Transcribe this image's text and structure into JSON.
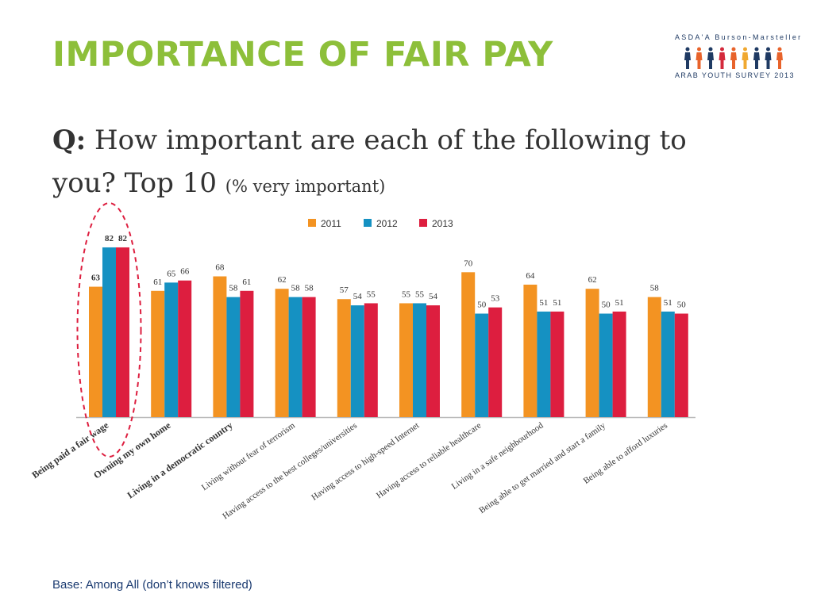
{
  "slide": {
    "title": "IMPORTANCE OF FAIR PAY",
    "question_prefix": "Q:",
    "question_text": "How important are each of the following to you? Top 10",
    "question_note": "(% very important)",
    "base_note": "Base: Among All (don’t knows filtered)"
  },
  "logo": {
    "top_text": "ASDA'A Burson-Marsteller",
    "bottom_text": "ARAB YOUTH SURVEY 2013",
    "figure_colors": [
      "#1f3a63",
      "#e8632b",
      "#1f3a63",
      "#d42a3c",
      "#e8632b",
      "#f0a830",
      "#1f3a63",
      "#1f3a63",
      "#e8632b"
    ]
  },
  "colors": {
    "title": "#8dbf3a",
    "series": [
      "#f39322",
      "#1591c2",
      "#dd1e3f"
    ],
    "highlight": "#dd1e3f"
  },
  "chart_data": {
    "type": "bar",
    "categories": [
      "Being paid a fair wage",
      "Owning my own home",
      "Living in a democratic country",
      "Living without fear of terrorism",
      "Having access to the best colleges/universities",
      "Having access to high-speed Internet",
      "Having access to reliable healthcare",
      "Living in a safe neighbourhood",
      "Being able to get married and start a family",
      "Being able to afford luxuries"
    ],
    "bold_categories": [
      0,
      1,
      2
    ],
    "highlighted_category": 0,
    "series": [
      {
        "name": "2011",
        "values": [
          63,
          61,
          68,
          62,
          57,
          55,
          70,
          64,
          62,
          58
        ]
      },
      {
        "name": "2012",
        "values": [
          82,
          65,
          58,
          58,
          54,
          55,
          50,
          51,
          50,
          51
        ]
      },
      {
        "name": "2013",
        "values": [
          82,
          66,
          61,
          58,
          55,
          54,
          53,
          51,
          51,
          50
        ]
      }
    ],
    "ylim": [
      0,
      100
    ],
    "legend_position": "top",
    "grid": false,
    "data_labels": true
  }
}
